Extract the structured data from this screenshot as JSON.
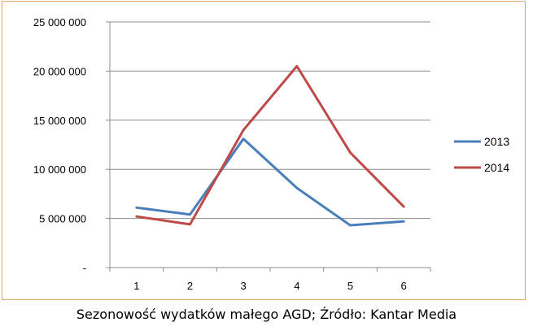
{
  "caption": "Sezonowość wydatków małego AGD; Źródło: Kantar Media",
  "chart_data": {
    "type": "line",
    "title": "",
    "xlabel": "",
    "ylabel": "",
    "categories": [
      "1",
      "2",
      "3",
      "4",
      "5",
      "6"
    ],
    "ylim": [
      0,
      25000000
    ],
    "yticks": [
      0,
      5000000,
      10000000,
      15000000,
      20000000,
      25000000
    ],
    "ytick_labels": [
      "-",
      "5 000 000",
      "10 000 000",
      "15 000 000",
      "20 000 000",
      "25 000 000"
    ],
    "grid": true,
    "legend_position": "right",
    "series": [
      {
        "name": "2013",
        "color": "#4a7ebb",
        "values": [
          6100000,
          5400000,
          13100000,
          8100000,
          4300000,
          4700000
        ]
      },
      {
        "name": "2014",
        "color": "#be4b48",
        "values": [
          5200000,
          4400000,
          14000000,
          20500000,
          11700000,
          6200000
        ]
      }
    ]
  }
}
